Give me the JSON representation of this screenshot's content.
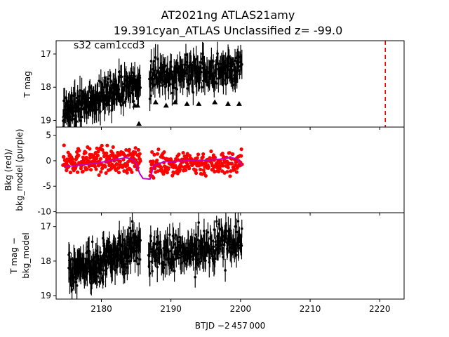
{
  "figure": {
    "title_line1": "AT2021ng  ATLAS21amy",
    "title_line2": "19.391cyan_ATLAS Unclassified z= -99.0",
    "xlabel": "BTJD −2 457 000"
  },
  "chart_data": [
    {
      "panel": "top",
      "type": "scatter",
      "annotation": "s32 cam1ccd3",
      "ylabel": "T mag",
      "xlim": [
        2173.5,
        2223.5
      ],
      "ylim": [
        19.2,
        16.6
      ],
      "yticks": [
        17,
        18,
        19
      ],
      "series": [
        {
          "color": "#000000",
          "marker": "point-errorbar",
          "segments": [
            {
              "x_start": 2174.5,
              "x_end": 2185.6,
              "mag_start": 18.75,
              "mag_end": 17.85,
              "scatter": 0.45
            },
            {
              "x_start": 2186.9,
              "x_end": 2200.2,
              "mag_start": 17.75,
              "mag_end": 17.35,
              "scatter": 0.45
            }
          ]
        },
        {
          "color": "#000000",
          "marker": "triangle",
          "points": [
            [
              2174.7,
              18.85
            ],
            [
              2175.5,
              18.6
            ],
            [
              2176.3,
              18.7
            ],
            [
              2178.3,
              18.55
            ],
            [
              2181.0,
              18.5
            ],
            [
              2184.8,
              18.55
            ],
            [
              2185.2,
              18.55
            ],
            [
              2185.4,
              19.1
            ],
            [
              2187.8,
              18.45
            ],
            [
              2189.3,
              18.55
            ],
            [
              2190.6,
              18.45
            ],
            [
              2192.3,
              18.5
            ],
            [
              2194.0,
              18.5
            ],
            [
              2196.3,
              18.45
            ],
            [
              2198.2,
              18.5
            ],
            [
              2199.8,
              18.5
            ]
          ]
        }
      ],
      "vline": {
        "x": 2220.8,
        "color": "#ff0000",
        "style": "dashed"
      }
    },
    {
      "panel": "middle",
      "type": "scatter",
      "ylabel_line1": "Bkg (red)/",
      "ylabel_line2": "bkg_model (purple)",
      "xlim": [
        2173.5,
        2223.5
      ],
      "ylim": [
        -10.2,
        6.6
      ],
      "yticks": [
        -10,
        -5,
        0,
        5
      ],
      "series": [
        {
          "color": "#ff0000",
          "marker": "point",
          "segments": [
            {
              "x_start": 2174.5,
              "x_end": 2185.6,
              "center": 0.0,
              "scatter": 2.2
            },
            {
              "x_start": 2187.0,
              "x_end": 2200.2,
              "center": -0.5,
              "scatter": 2.2
            }
          ]
        },
        {
          "color": "#bf00bf",
          "marker": "line",
          "points": [
            [
              2174.6,
              -1.2
            ],
            [
              2176.0,
              -1.0
            ],
            [
              2178.0,
              -0.7
            ],
            [
              2180.0,
              -0.3
            ],
            [
              2182.0,
              0.2
            ],
            [
              2183.5,
              0.6
            ],
            [
              2184.5,
              0.3
            ],
            [
              2185.0,
              -0.5
            ],
            [
              2185.5,
              -2.5
            ],
            [
              2186.0,
              -3.5
            ],
            [
              2187.0,
              -3.6
            ],
            [
              2187.5,
              -1.0
            ],
            [
              2189.0,
              -0.2
            ],
            [
              2191.0,
              -0.1
            ],
            [
              2193.0,
              0.0
            ],
            [
              2195.0,
              0.1
            ],
            [
              2197.0,
              0.3
            ],
            [
              2198.5,
              0.6
            ],
            [
              2199.5,
              0.4
            ],
            [
              2200.2,
              -1.0
            ]
          ]
        }
      ]
    },
    {
      "panel": "bottom",
      "type": "scatter",
      "ylabel_line1": "T mag −",
      "ylabel_line2": "bkg_model",
      "xlim": [
        2173.5,
        2223.5
      ],
      "ylim": [
        19.1,
        16.6
      ],
      "yticks": [
        17,
        18,
        19
      ],
      "xticks": [
        2180,
        2190,
        2200,
        2210,
        2220
      ],
      "series": [
        {
          "color": "#000000",
          "marker": "point-errorbar",
          "segments": [
            {
              "x_start": 2175.3,
              "x_end": 2185.6,
              "mag_start": 18.35,
              "mag_end": 17.6,
              "scatter": 0.5
            },
            {
              "x_start": 2186.8,
              "x_end": 2200.2,
              "mag_start": 17.9,
              "mag_end": 17.35,
              "scatter": 0.5
            }
          ]
        }
      ]
    }
  ]
}
